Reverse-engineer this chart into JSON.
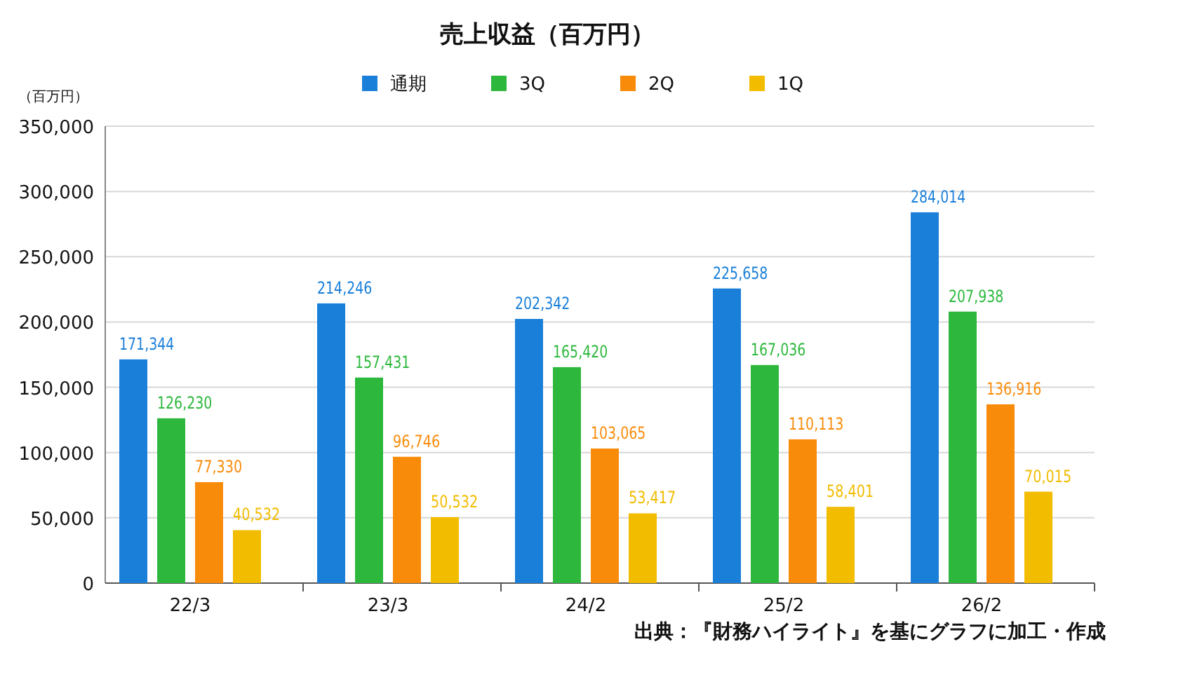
{
  "chart_data": {
    "type": "bar",
    "title": "売上収益（百万円）",
    "ylabel": "（百万円）",
    "categories": [
      "22/3",
      "23/3",
      "24/2",
      "25/2",
      "26/2"
    ],
    "series": [
      {
        "name": "通期",
        "color": "#1a7fd9",
        "values": [
          171344,
          214246,
          202342,
          225658,
          284014
        ],
        "value_labels": [
          "171,344",
          "214,246",
          "202,342",
          "225,658",
          "284,014"
        ]
      },
      {
        "name": "3Q",
        "color": "#2db83d",
        "values": [
          126230,
          157431,
          165420,
          167036,
          207938
        ],
        "value_labels": [
          "126,230",
          "157,431",
          "165,420",
          "167,036",
          "207,938"
        ]
      },
      {
        "name": "2Q",
        "color": "#f98b0a",
        "values": [
          77330,
          96746,
          103065,
          110113,
          136916
        ],
        "value_labels": [
          "77,330",
          "96,746",
          "103,065",
          "110,113",
          "136,916"
        ]
      },
      {
        "name": "1Q",
        "color": "#f2bc00",
        "values": [
          40532,
          50532,
          53417,
          58401,
          70015
        ],
        "value_labels": [
          "40,532",
          "50,532",
          "53,417",
          "58,401",
          "70,015"
        ]
      }
    ],
    "ylim": [
      0,
      350000
    ],
    "yticks": [
      {
        "value": 0,
        "label": "0"
      },
      {
        "value": 50000,
        "label": "50,000"
      },
      {
        "value": 100000,
        "label": "100,000"
      },
      {
        "value": 150000,
        "label": "150,000"
      },
      {
        "value": 200000,
        "label": "200,000"
      },
      {
        "value": 250000,
        "label": "250,000"
      },
      {
        "value": 300000,
        "label": "300,000"
      },
      {
        "value": 350000,
        "label": "350,000"
      }
    ],
    "grid": "y",
    "legend": "top",
    "annotations": [
      "出典：『財務ハイライト』を基にグラフに加工・作成"
    ]
  }
}
